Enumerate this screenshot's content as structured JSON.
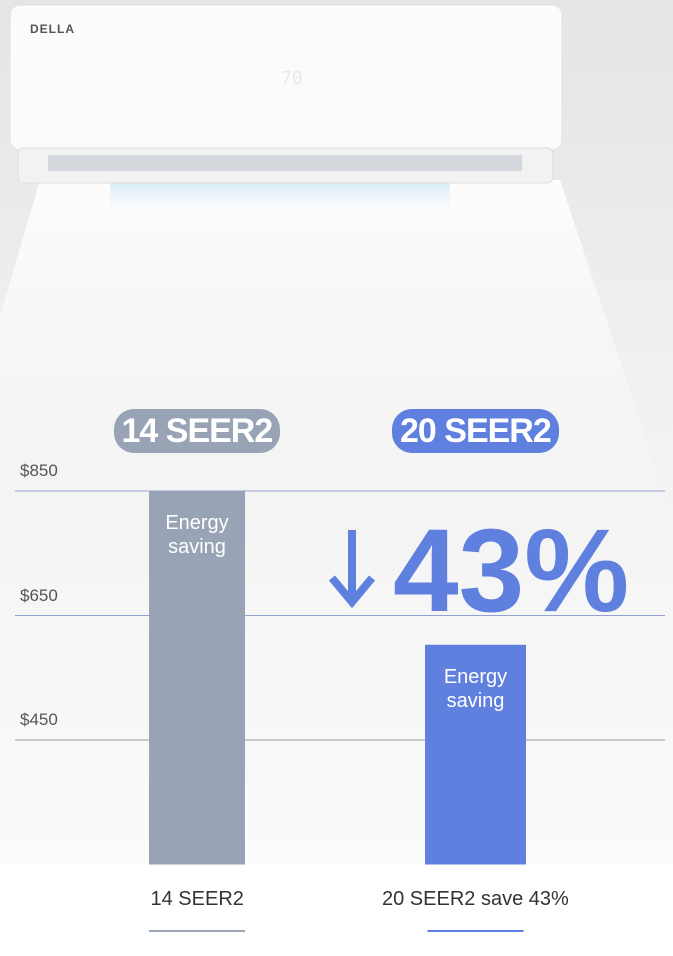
{
  "brand": "DELLA",
  "display": "70",
  "chart_data": {
    "type": "bar",
    "categories": [
      "14 SEER2",
      "20 SEER2"
    ],
    "values": [
      850,
      603
    ],
    "colors": [
      "#98a4b5",
      "#5f80de"
    ],
    "bar_labels": [
      "Energy saving",
      "Energy saving"
    ],
    "annotation": "43%",
    "bottom_labels": [
      "14 SEER2",
      "20 SEER2 save 43%"
    ],
    "ylim": [
      250,
      850
    ],
    "yticks": [
      {
        "value": 450,
        "label": "$450"
      },
      {
        "value": 650,
        "label": "$650"
      },
      {
        "value": 850,
        "label": "$850"
      }
    ],
    "grid": true
  }
}
